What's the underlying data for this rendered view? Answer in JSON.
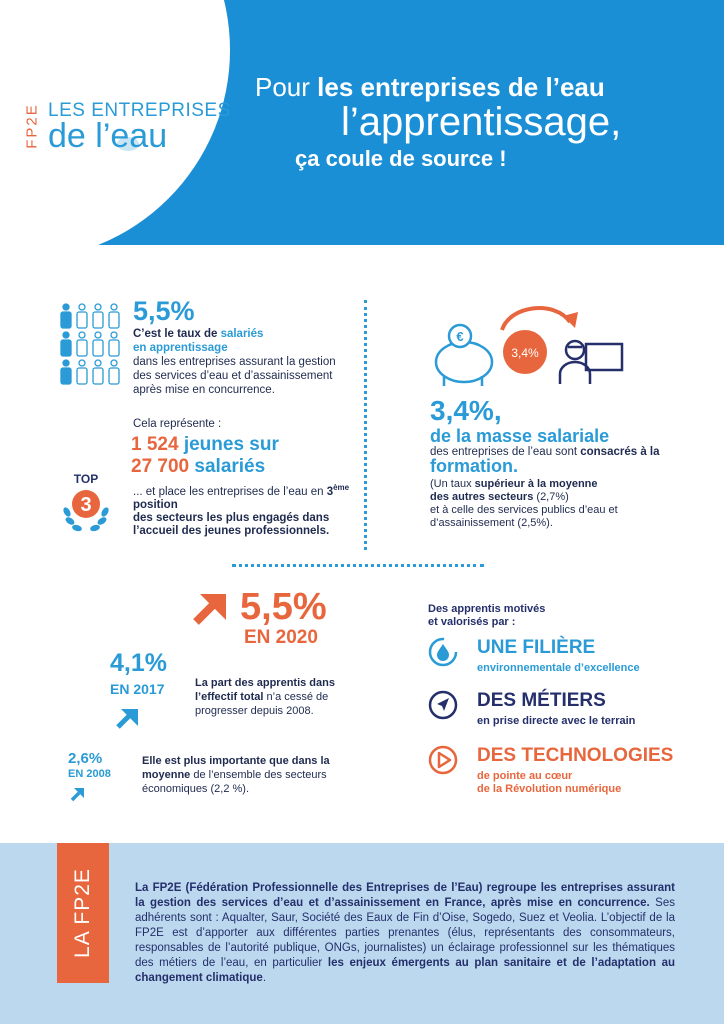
{
  "header": {
    "logo_acronym": "FP2E",
    "logo_line1": "LES ENTREPRISES",
    "logo_line2": "de l’eau",
    "headline_1_pre": "Pour ",
    "headline_1_bold": "les entreprises de l’eau",
    "headline_2": "l’apprentissage,",
    "headline_3": "ça coule de source !"
  },
  "apprentices": {
    "percent": "5,5%",
    "line1_pre": "C’est le taux de ",
    "line1_hl": "salariés",
    "line2_hl": "en apprentissage",
    "line3": "dans les entreprises assurant la gestion des services d’eau et d’assainissement après mise en concurrence.",
    "represents": "Cela représente :",
    "count_young": "1 524",
    "count_young_label": " jeunes sur",
    "count_total": "27 700",
    "count_total_label": " salariés",
    "desc_1": "... et place les entreprises de l’eau en ",
    "desc_rank": "3",
    "desc_rank_sup": "ème",
    "desc_rank_label": " position",
    "desc_2": "des secteurs les plus engagés dans l’accueil des jeunes professionnels.",
    "top_label": "TOP",
    "top_rank": "3"
  },
  "training": {
    "badge": "3,4%",
    "euro_symbol": "€",
    "percent": "3,4%,",
    "subtitle": "de la masse salariale",
    "text_pre": "des entreprises de l’eau sont ",
    "text_bold": "consacrés à la",
    "formation": "formation.",
    "note_1": "(Un taux ",
    "note_bold_1": "supérieur à la moyenne",
    "note_bold_2": "des autres secteurs",
    "note_2": " (2,7%)",
    "note_3": "et à celle des services publics d’eau et d’assainissement (2,5%)."
  },
  "evolution": {
    "y2020_value": "5,5%",
    "y2020_label": "EN 2020",
    "y2017_value": "4,1%",
    "y2017_label": "EN 2017",
    "y2008_value": "2,6%",
    "y2008_label": "EN 2008",
    "text1_bold_1": "La part des apprentis dans",
    "text1_bold_2": "l’effectif total",
    "text1_rest": " n’a cessé de progresser depuis 2008.",
    "text2_bold_1": "Elle est plus importante que dans la",
    "text2_bold_2": "moyenne",
    "text2_rest": " de l’ensemble des secteurs économiques (2,2 %)."
  },
  "motivation": {
    "intro_1": "Des apprentis motivés",
    "intro_2": "et valorisés par :",
    "features": [
      {
        "title": "UNE FILIÈRE",
        "subtitle_1": "environnementale d’excellence",
        "subtitle_2": "",
        "color": "#2a9bd6",
        "icon": "water-drop-icon"
      },
      {
        "title": "DES MÉTIERS",
        "subtitle_1": "en prise directe avec le terrain",
        "subtitle_2": "",
        "color": "#242f6b",
        "icon": "navigation-arrow-icon"
      },
      {
        "title": "DES TECHNOLOGIES",
        "subtitle_1": "de pointe au cœur",
        "subtitle_2": "de la Révolution numérique",
        "color": "#e8663d",
        "icon": "play-icon"
      }
    ]
  },
  "footer": {
    "tab_label": "LA FP2E",
    "p_bold_1": "La FP2E (Fédération Professionnelle des Entreprises de l’Eau) regroupe les entreprises assurant la gestion des services d’eau et d’assainissement en France, après mise en concurrence.",
    "p_text_1": " Ses adhérents sont : Aqualter, Saur, Société des Eaux de Fin d’Oise, Sogedo, Suez et Veolia. L’objectif de la FP2E est d’apporter aux différentes parties prenantes (élus, représentants des consommateurs, responsables de l’autorité publique, ONGs, journalistes) un éclairage professionnel sur les thématiques des métiers de l’eau, en particulier ",
    "p_bold_2": "les enjeux émergents au plan sanitaire et de l’adaptation au changement climatique",
    "p_text_2": "."
  },
  "colors": {
    "blue": "#2a9bd6",
    "header_blue": "#1b8fd6",
    "orange": "#e8663d",
    "navy": "#242f6b",
    "footer_bg": "#bcd8ee"
  }
}
